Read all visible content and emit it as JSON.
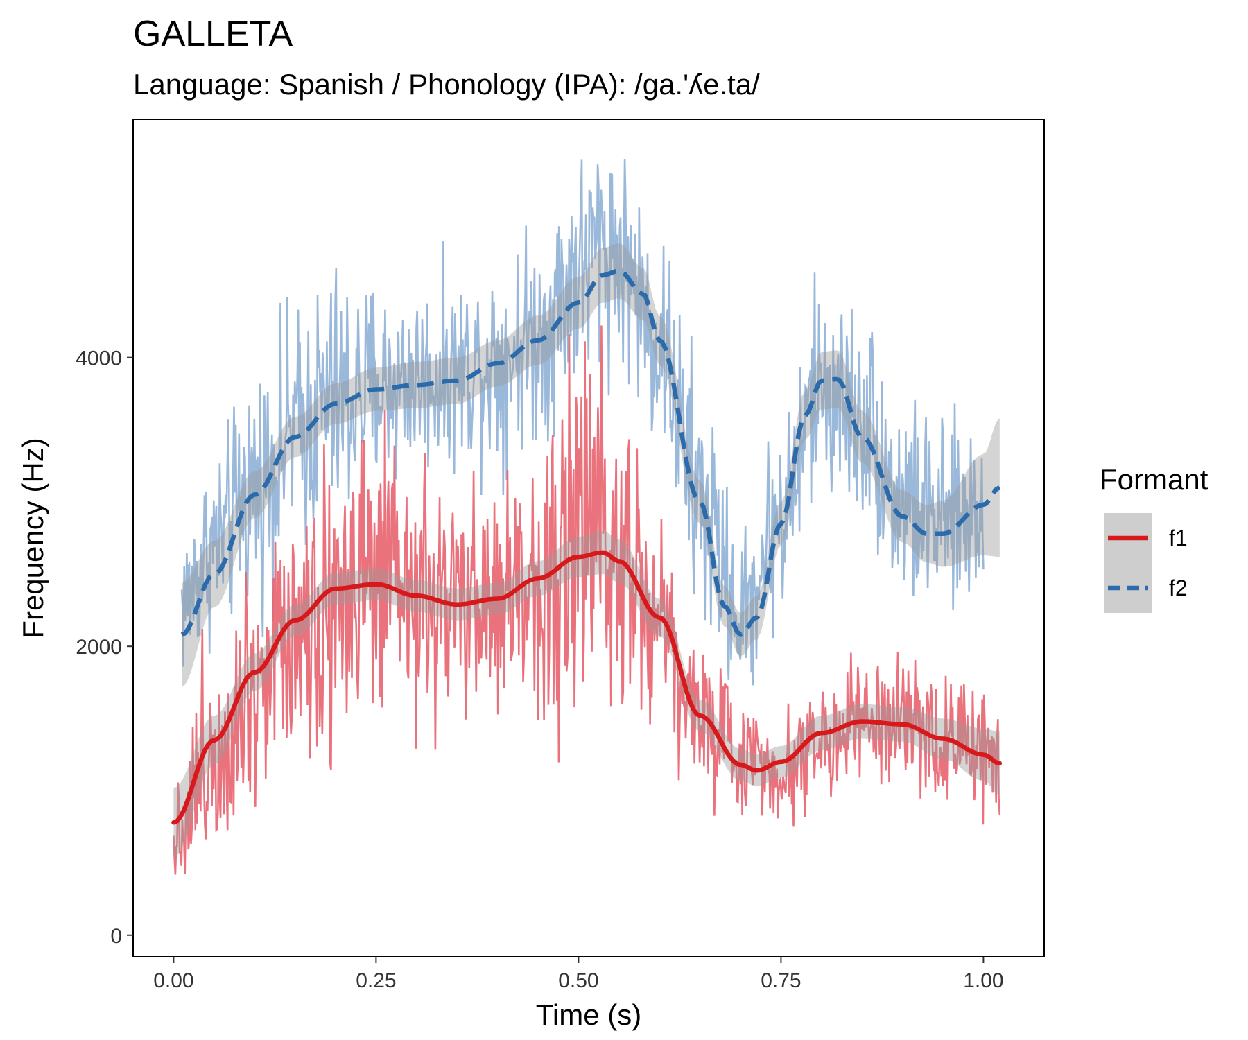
{
  "chart_data": {
    "type": "line",
    "title": "GALLETA",
    "subtitle": "Language: Spanish / Phonology (IPA): /ga.'ʎe.ta/",
    "xlabel": "Time (s)",
    "ylabel": "Frequency (Hz)",
    "xlim": [
      -0.05,
      1.075
    ],
    "ylim": [
      -150,
      5650
    ],
    "x_ticks": [
      0.0,
      0.25,
      0.5,
      0.75,
      1.0
    ],
    "x_tick_labels": [
      "0.00",
      "0.25",
      "0.50",
      "0.75",
      "1.00"
    ],
    "y_ticks": [
      0,
      2000,
      4000
    ],
    "y_tick_labels": [
      "0",
      "2000",
      "4000"
    ],
    "grid": false,
    "legend": {
      "title": "Formant",
      "position": "right"
    },
    "series": [
      {
        "name": "f1",
        "color": "#d7191c",
        "raw_color": "#e8636f",
        "linestyle": "solid",
        "smooth": {
          "x": [
            0.0,
            0.05,
            0.1,
            0.15,
            0.2,
            0.25,
            0.3,
            0.35,
            0.4,
            0.45,
            0.5,
            0.53,
            0.55,
            0.6,
            0.65,
            0.7,
            0.72,
            0.75,
            0.8,
            0.85,
            0.9,
            0.95,
            1.0,
            1.02
          ],
          "y": [
            780,
            1350,
            1820,
            2180,
            2400,
            2430,
            2350,
            2290,
            2330,
            2470,
            2620,
            2650,
            2590,
            2200,
            1520,
            1180,
            1140,
            1200,
            1400,
            1480,
            1460,
            1360,
            1250,
            1190
          ],
          "ci_half_width": [
            240,
            170,
            130,
            110,
            110,
            110,
            110,
            110,
            110,
            120,
            140,
            150,
            150,
            130,
            110,
            110,
            110,
            110,
            120,
            120,
            120,
            140,
            180,
            220
          ]
        },
        "raw_envelope": {
          "x": [
            0.0,
            0.05,
            0.1,
            0.15,
            0.2,
            0.25,
            0.3,
            0.35,
            0.4,
            0.45,
            0.5,
            0.53,
            0.55,
            0.6,
            0.65,
            0.7,
            0.75,
            0.8,
            0.85,
            0.9,
            0.95,
            1.0,
            1.02
          ],
          "y": [
            700,
            1300,
            1800,
            2150,
            2350,
            2400,
            2300,
            2250,
            2300,
            2450,
            2750,
            2900,
            2800,
            2200,
            1500,
            1250,
            1150,
            1350,
            1450,
            1450,
            1350,
            1250,
            1150
          ],
          "spread": [
            400,
            900,
            1000,
            1000,
            1300,
            1100,
            900,
            900,
            1000,
            1000,
            1400,
            1600,
            1400,
            800,
            600,
            450,
            400,
            450,
            450,
            450,
            450,
            500,
            500
          ]
        }
      },
      {
        "name": "f2",
        "color": "#2c6bab",
        "raw_color": "#8fb0d6",
        "linestyle": "dashed",
        "smooth": {
          "x": [
            0.01,
            0.05,
            0.1,
            0.15,
            0.2,
            0.25,
            0.3,
            0.35,
            0.4,
            0.45,
            0.5,
            0.53,
            0.55,
            0.58,
            0.6,
            0.65,
            0.68,
            0.7,
            0.72,
            0.75,
            0.78,
            0.8,
            0.82,
            0.85,
            0.9,
            0.93,
            0.95,
            1.0,
            1.02
          ],
          "y": [
            2080,
            2500,
            3050,
            3450,
            3680,
            3780,
            3810,
            3840,
            3960,
            4120,
            4380,
            4570,
            4600,
            4440,
            4120,
            3000,
            2280,
            2080,
            2200,
            2850,
            3600,
            3840,
            3850,
            3450,
            2900,
            2780,
            2780,
            2980,
            3100
          ],
          "ci_half_width": [
            360,
            230,
            160,
            140,
            140,
            150,
            160,
            160,
            160,
            170,
            180,
            190,
            190,
            180,
            170,
            150,
            140,
            150,
            150,
            150,
            170,
            200,
            200,
            180,
            180,
            200,
            230,
            350,
            480
          ]
        },
        "raw_envelope": {
          "x": [
            0.01,
            0.05,
            0.1,
            0.15,
            0.2,
            0.25,
            0.3,
            0.35,
            0.4,
            0.45,
            0.5,
            0.53,
            0.55,
            0.6,
            0.65,
            0.7,
            0.75,
            0.8,
            0.85,
            0.9,
            0.95,
            1.0
          ],
          "y": [
            2300,
            2700,
            3100,
            3500,
            3700,
            3800,
            3850,
            3900,
            4000,
            4150,
            4600,
            4800,
            4700,
            4100,
            3000,
            2200,
            2900,
            3800,
            3600,
            3000,
            2850,
            2950
          ],
          "spread": [
            600,
            700,
            900,
            900,
            1000,
            800,
            700,
            700,
            800,
            800,
            900,
            900,
            800,
            800,
            1000,
            600,
            800,
            800,
            800,
            800,
            700,
            700
          ]
        }
      }
    ]
  }
}
